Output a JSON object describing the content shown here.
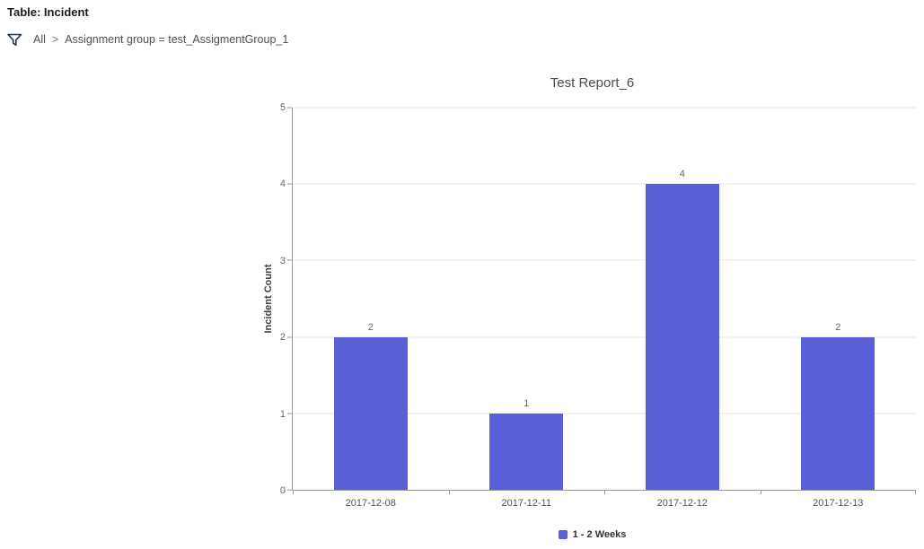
{
  "header": {
    "table_label": "Table: Incident",
    "breadcrumb": {
      "root": "All",
      "separator": ">",
      "condition": "Assignment group = test_AssigmentGroup_1"
    }
  },
  "chart_data": {
    "type": "bar",
    "title": "Test Report_6",
    "categories": [
      "2017-12-08",
      "2017-12-11",
      "2017-12-12",
      "2017-12-13"
    ],
    "values": [
      2,
      1,
      4,
      2
    ],
    "series_name": "1 - 2 Weeks",
    "xlabel": "",
    "ylabel": "Incident Count",
    "ylim": [
      0,
      5
    ],
    "y_ticks": [
      0,
      1,
      2,
      3,
      4,
      5
    ],
    "grid": true,
    "legend_position": "bottom",
    "bar_color": "#5b5fd6"
  }
}
